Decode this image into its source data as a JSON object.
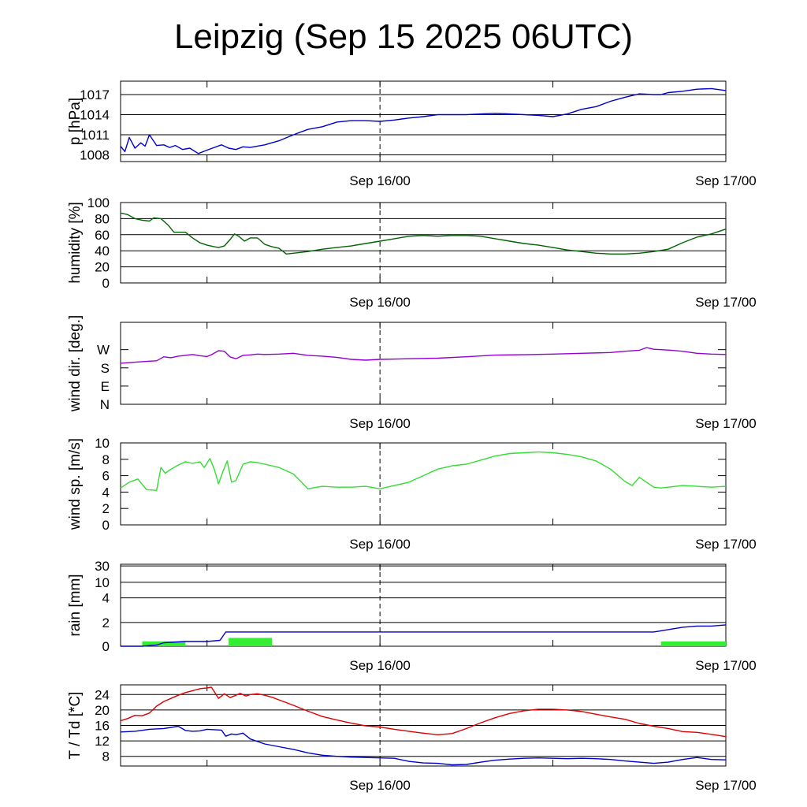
{
  "title": "Leipzig (Sep 15 2025 06UTC)",
  "x_ticks": [
    "Sep 16/00",
    "Sep 17/00"
  ],
  "chart_data": [
    {
      "type": "line",
      "ylabel": "p [hPa]",
      "ylim": [
        1007,
        1019
      ],
      "yticks": [
        1008,
        1011,
        1014,
        1017
      ],
      "ytick_labels": [
        "1008",
        "1011",
        "1014",
        "1017"
      ],
      "grid": true,
      "x_hours_range": [
        0,
        42
      ],
      "series": [
        {
          "color": "#0000cc",
          "x": [
            0,
            0.3,
            0.6,
            1,
            1.4,
            1.7,
            2,
            2.5,
            3,
            3.4,
            3.8,
            4.3,
            4.8,
            5.4,
            6,
            6.5,
            7,
            7.5,
            8,
            8.5,
            9,
            10,
            11,
            12,
            13,
            14,
            15,
            16,
            17,
            18,
            19,
            20,
            21,
            22,
            23,
            24,
            25,
            26,
            27,
            28,
            29,
            30,
            31,
            32,
            33,
            34,
            35,
            36,
            37,
            37.5,
            38,
            39,
            40,
            41,
            42
          ],
          "y": [
            1009.3,
            1008.5,
            1010.6,
            1009.0,
            1009.8,
            1009.3,
            1011.0,
            1009.4,
            1009.5,
            1009.1,
            1009.4,
            1008.8,
            1009.0,
            1008.2,
            1008.7,
            1009.1,
            1009.5,
            1009.0,
            1008.8,
            1009.2,
            1009.1,
            1009.5,
            1010.1,
            1011.0,
            1011.8,
            1012.2,
            1012.9,
            1013.1,
            1013.1,
            1013.0,
            1013.2,
            1013.5,
            1013.7,
            1014.0,
            1014.0,
            1014.0,
            1014.1,
            1014.2,
            1014.1,
            1014.0,
            1013.9,
            1013.7,
            1014.1,
            1014.8,
            1015.2,
            1016.0,
            1016.6,
            1017.1,
            1017.0,
            1017.0,
            1017.3,
            1017.5,
            1017.8,
            1017.9,
            1017.6
          ]
        }
      ]
    },
    {
      "type": "line",
      "ylabel": "humidity [%]",
      "ylim": [
        0,
        100
      ],
      "yticks": [
        0,
        20,
        40,
        60,
        80,
        100
      ],
      "ytick_labels": [
        "0",
        "20",
        "40",
        "60",
        "80",
        "100"
      ],
      "grid": true,
      "x_hours_range": [
        0,
        42
      ],
      "series": [
        {
          "color": "#006400",
          "x": [
            0,
            0.5,
            1,
            1.5,
            2,
            2.3,
            2.8,
            3.3,
            3.7,
            4.5,
            5,
            5.5,
            6,
            6.5,
            6.8,
            7.2,
            7.6,
            7.9,
            8.2,
            8.6,
            9,
            9.5,
            10,
            10.5,
            11,
            11.5,
            12,
            13,
            14,
            15,
            16,
            17,
            18,
            19,
            20,
            21,
            22,
            23,
            24,
            25,
            26,
            27,
            28,
            29,
            30,
            31,
            32,
            33,
            34,
            35,
            36,
            37,
            38,
            39,
            40,
            41,
            42
          ],
          "y": [
            87,
            85,
            80,
            78,
            77,
            81,
            80,
            72,
            63,
            63,
            56,
            50,
            47,
            45,
            44,
            46,
            54,
            61,
            58,
            52,
            56,
            56,
            48,
            45,
            43,
            36,
            37,
            39,
            42,
            44,
            46,
            49,
            52,
            55,
            58,
            59,
            58,
            59,
            59,
            58,
            55,
            52,
            49,
            47,
            44,
            41,
            39,
            37,
            36,
            36,
            37,
            39,
            42,
            50,
            57,
            61,
            67
          ]
        }
      ]
    },
    {
      "type": "line",
      "ylabel": "wind dir. [deg.]",
      "ylim": [
        0,
        405
      ],
      "yticks": [
        0,
        90,
        180,
        270
      ],
      "ytick_labels": [
        "N",
        "E",
        "S",
        "W"
      ],
      "grid": false,
      "x_hours_range": [
        0,
        42
      ],
      "series": [
        {
          "color": "#9400d3",
          "x": [
            0,
            1,
            2,
            2.5,
            3,
            3.5,
            4,
            4.5,
            5,
            5.5,
            6,
            6.3,
            6.8,
            7.2,
            7.6,
            8,
            8.5,
            9,
            9.5,
            10,
            11,
            12,
            13,
            14,
            15,
            16,
            17,
            18,
            20,
            22,
            24,
            26,
            28,
            30,
            32,
            34,
            35,
            36,
            36.5,
            37,
            38,
            39,
            40,
            41,
            42
          ],
          "y": [
            203,
            208,
            213,
            215,
            235,
            230,
            238,
            242,
            246,
            240,
            236,
            245,
            265,
            262,
            234,
            225,
            242,
            244,
            248,
            246,
            248,
            252,
            242,
            238,
            232,
            222,
            218,
            222,
            225,
            228,
            235,
            243,
            245,
            248,
            252,
            256,
            262,
            267,
            280,
            272,
            268,
            262,
            252,
            248,
            246
          ]
        }
      ]
    },
    {
      "type": "line",
      "ylabel": "wind sp. [m/s]",
      "ylim": [
        0,
        10
      ],
      "yticks": [
        0,
        2,
        4,
        6,
        8,
        10
      ],
      "ytick_labels": [
        "0",
        "2",
        "4",
        "6",
        "8",
        "10"
      ],
      "grid": false,
      "x_hours_range": [
        0,
        42
      ],
      "series": [
        {
          "color": "#33dd33",
          "x": [
            0,
            0.6,
            1.2,
            1.8,
            2.5,
            2.8,
            3.1,
            3.5,
            4,
            4.5,
            5,
            5.5,
            5.8,
            6.2,
            6.5,
            6.8,
            7.1,
            7.4,
            7.7,
            8,
            8.5,
            9,
            9.5,
            10,
            11,
            12,
            13,
            14,
            15,
            16,
            17,
            18,
            19,
            20,
            21,
            22,
            23,
            24,
            25,
            26,
            27,
            28,
            29,
            30,
            31,
            32,
            33,
            34,
            35,
            35.5,
            36,
            36.5,
            37,
            37.5,
            38,
            39,
            40,
            41,
            42
          ],
          "y": [
            4.5,
            5.2,
            5.6,
            4.3,
            4.2,
            7.0,
            6.3,
            6.8,
            7.3,
            7.7,
            7.5,
            7.7,
            7.0,
            8.1,
            6.8,
            5.0,
            6.5,
            7.8,
            5.2,
            5.4,
            7.4,
            7.7,
            7.6,
            7.4,
            7.0,
            6.2,
            4.4,
            4.7,
            4.6,
            4.6,
            4.7,
            4.4,
            4.8,
            5.2,
            6.0,
            6.8,
            7.2,
            7.4,
            7.9,
            8.4,
            8.7,
            8.8,
            8.9,
            8.8,
            8.6,
            8.3,
            7.8,
            6.8,
            5.3,
            4.8,
            5.8,
            5.2,
            4.6,
            4.5,
            4.6,
            4.8,
            4.7,
            4.6,
            4.7
          ]
        }
      ]
    },
    {
      "type": "line",
      "ylabel": "rain [mm]",
      "y_scale": "nonlinear",
      "yticks": [
        0,
        2,
        4,
        10,
        30
      ],
      "ytick_labels": [
        "0",
        "2",
        "4",
        "10",
        "30"
      ],
      "grid": true,
      "x_hours_range": [
        0,
        42
      ],
      "series": [
        {
          "color": "#0000cc",
          "x": [
            0,
            1.5,
            2.5,
            3,
            4.5,
            6,
            6.9,
            7.3,
            12,
            24,
            30,
            37,
            38,
            39,
            40,
            41,
            42
          ],
          "y": [
            0,
            0,
            0.1,
            0.3,
            0.4,
            0.4,
            0.5,
            1.2,
            1.2,
            1.2,
            1.2,
            1.2,
            1.4,
            1.6,
            1.7,
            1.7,
            1.8
          ]
        }
      ],
      "bars": {
        "color": "#33ee33",
        "items": [
          {
            "x_start": 1.5,
            "x_end": 4.5,
            "value": 0.4
          },
          {
            "x_start": 7.5,
            "x_end": 10.5,
            "value": 0.7
          },
          {
            "x_start": 37.5,
            "x_end": 42,
            "value": 0.4
          }
        ]
      }
    },
    {
      "type": "line",
      "ylabel": "T / Td [*C]",
      "ylim": [
        5.5,
        26.5
      ],
      "yticks": [
        8,
        12,
        16,
        20,
        24
      ],
      "ytick_labels": [
        "8",
        "12",
        "16",
        "20",
        "24"
      ],
      "grid": true,
      "x_hours_range": [
        0,
        42
      ],
      "series": [
        {
          "color": "#dd0000",
          "x": [
            0,
            0.5,
            1,
            1.5,
            2,
            2.5,
            3,
            3.5,
            4,
            4.5,
            5,
            5.5,
            6,
            6.3,
            6.8,
            7.2,
            7.6,
            8,
            8.3,
            8.7,
            9,
            9.5,
            10,
            10.5,
            11,
            12,
            13,
            14,
            15,
            16,
            17,
            18,
            19,
            20,
            21,
            22,
            23,
            24,
            25,
            26,
            27,
            28,
            29,
            30,
            31,
            32,
            33,
            34,
            35,
            36,
            37,
            38,
            39,
            40,
            41,
            42
          ],
          "y": [
            17.2,
            17.8,
            18.6,
            18.5,
            19.2,
            21.0,
            22.2,
            23.0,
            23.8,
            24.5,
            25.0,
            25.5,
            25.7,
            25.9,
            23.0,
            24.2,
            23.2,
            23.8,
            24.3,
            23.6,
            24.0,
            24.2,
            23.8,
            23.3,
            22.6,
            21.2,
            19.7,
            18.3,
            17.4,
            16.6,
            15.9,
            15.6,
            15.0,
            14.5,
            14.0,
            13.6,
            13.9,
            15.2,
            16.7,
            18.0,
            19.1,
            19.8,
            20.2,
            20.2,
            20.0,
            19.6,
            18.9,
            18.2,
            17.6,
            16.5,
            15.8,
            15.2,
            14.4,
            14.2,
            13.7,
            13.1
          ]
        },
        {
          "color": "#0000cc",
          "x": [
            0,
            1,
            2,
            3,
            3.5,
            4,
            4.5,
            5,
            5.5,
            6,
            6.5,
            7,
            7.3,
            7.7,
            8,
            8.5,
            9,
            10,
            11,
            12,
            13,
            14,
            15,
            16,
            17,
            18,
            19,
            20,
            21,
            22,
            23,
            24,
            25,
            26,
            27,
            28,
            29,
            30,
            31,
            32,
            33,
            34,
            35,
            36,
            37,
            38,
            39,
            40,
            41,
            42
          ],
          "y": [
            14.3,
            14.5,
            15.0,
            15.2,
            15.5,
            15.8,
            14.7,
            14.5,
            14.6,
            15.0,
            14.9,
            14.8,
            13.2,
            13.8,
            13.6,
            14.0,
            12.5,
            11.2,
            10.5,
            9.8,
            8.9,
            8.3,
            8.0,
            7.8,
            7.7,
            7.6,
            7.5,
            6.7,
            6.3,
            6.2,
            5.8,
            5.9,
            6.5,
            7.0,
            7.3,
            7.5,
            7.6,
            7.5,
            7.4,
            7.5,
            7.4,
            7.2,
            6.8,
            6.5,
            6.2,
            6.5,
            7.2,
            7.7,
            7.2,
            7.1
          ]
        }
      ]
    }
  ]
}
